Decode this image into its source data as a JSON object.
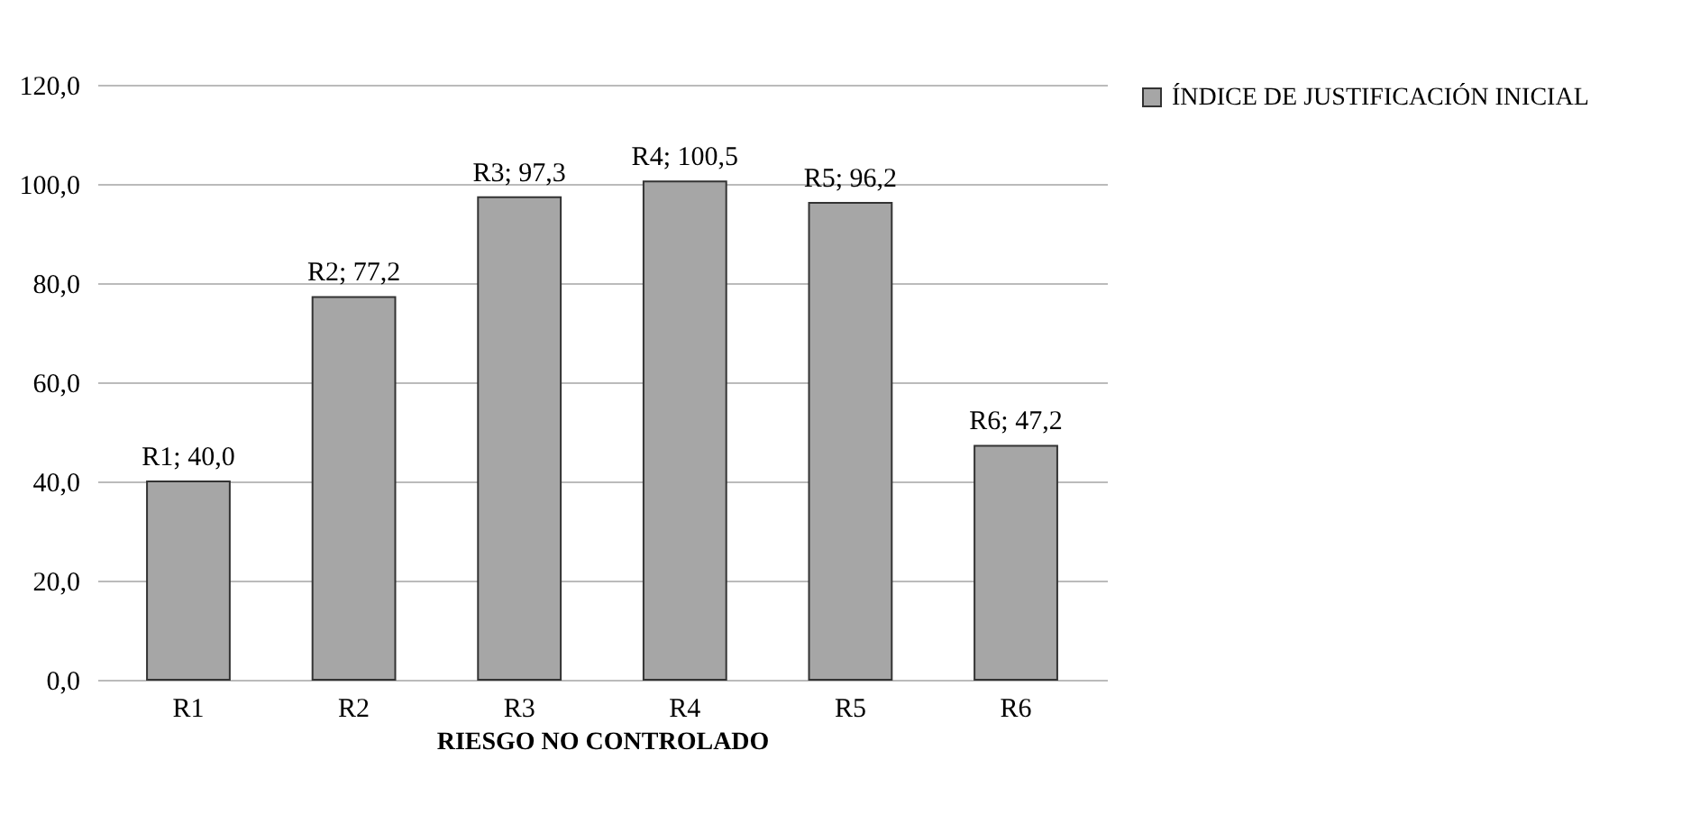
{
  "chart_data": {
    "type": "bar",
    "xlabel": "RIESGO NO CONTROLADO",
    "categories": [
      "R1",
      "R2",
      "R3",
      "R4",
      "R5",
      "R6"
    ],
    "series": [
      {
        "name": "ÍNDICE DE JUSTIFICACIÓN INICIAL",
        "color": "#a6a6a6",
        "values": [
          40.0,
          77.2,
          97.3,
          100.5,
          96.2,
          47.2
        ],
        "value_labels": [
          "R1; 40,0",
          "R2; 77,2",
          "R3; 97,3",
          "R4; 100,5",
          "R5; 96,2",
          "R6; 47,2"
        ]
      }
    ],
    "ylim": [
      0,
      120
    ],
    "yticks": [
      {
        "value": 0,
        "label": "0,0"
      },
      {
        "value": 20,
        "label": "20,0"
      },
      {
        "value": 40,
        "label": "40,0"
      },
      {
        "value": 60,
        "label": "60,0"
      },
      {
        "value": 80,
        "label": "80,0"
      },
      {
        "value": 100,
        "label": "100,0"
      },
      {
        "value": 120,
        "label": "120,0"
      }
    ],
    "grid": "y",
    "legend": "right"
  }
}
